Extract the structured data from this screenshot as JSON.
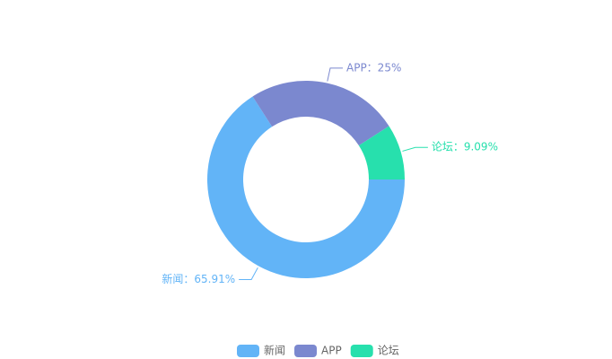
{
  "chart_data": {
    "type": "pie",
    "categories": [
      "新闻",
      "APP",
      "论坛"
    ],
    "values": [
      65.91,
      25,
      9.09
    ],
    "value_labels": [
      "新闻：65.91%",
      "APP：25%",
      "论坛：9.09%"
    ],
    "colors": [
      "#62b4f7",
      "#7b88cf",
      "#27e0ad"
    ],
    "legend": "bottom"
  }
}
